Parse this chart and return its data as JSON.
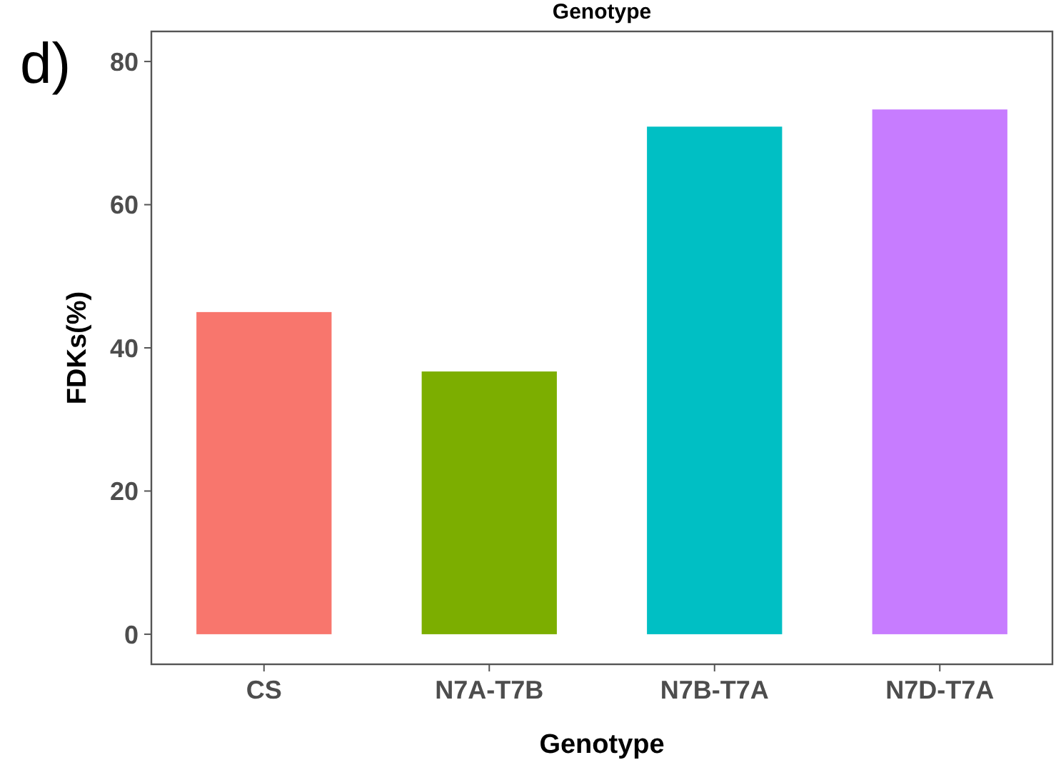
{
  "chart_data": {
    "type": "bar",
    "title": "Genotype",
    "annotations": [
      "d)"
    ],
    "xlabel": "Genotype",
    "ylabel": "FDKs(%)",
    "categories": [
      "CS",
      "N7A-T7B",
      "N7B-T7A",
      "N7D-T7A"
    ],
    "values": [
      45,
      36.7,
      70.9,
      73.3
    ],
    "colors": [
      "#f8766d",
      "#7cae00",
      "#00bfc4",
      "#c77cff"
    ],
    "ylim": [
      -4.2,
      84.2
    ],
    "yticks": [
      0,
      20,
      40,
      60,
      80
    ],
    "grid": false
  }
}
